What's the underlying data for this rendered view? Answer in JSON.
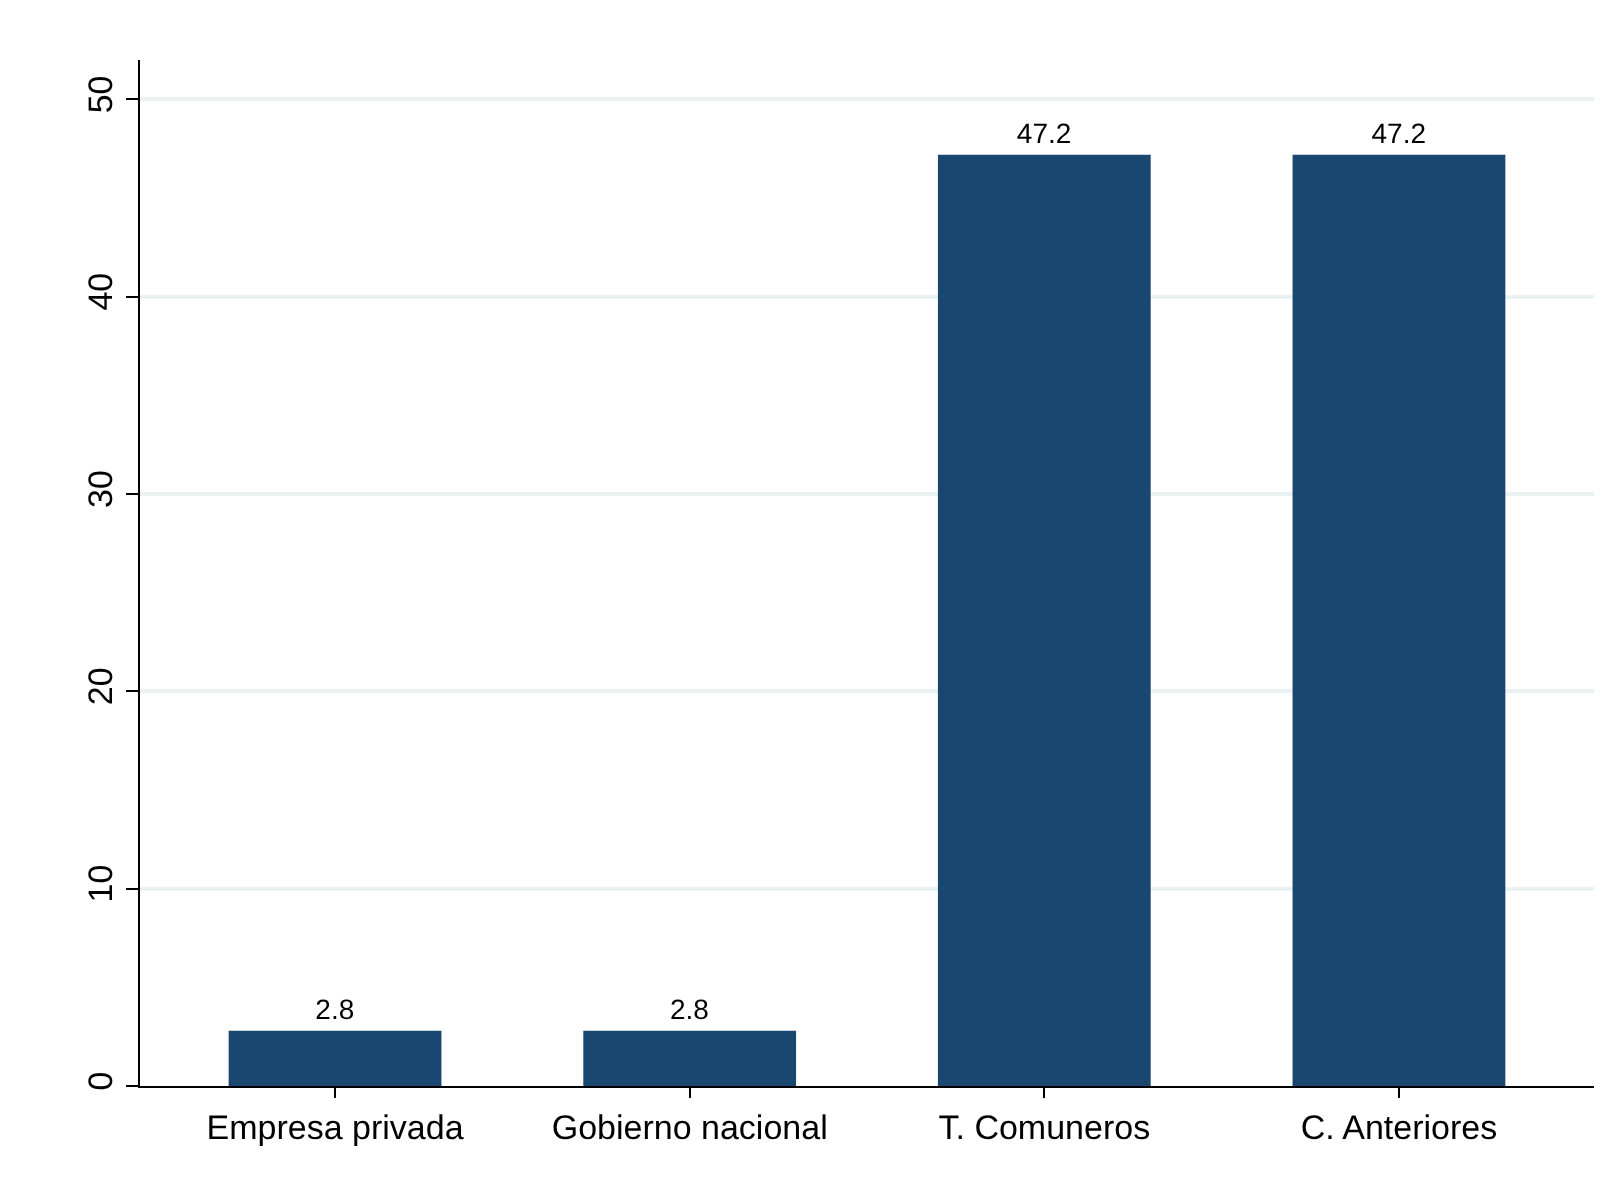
{
  "chart_data": {
    "type": "bar",
    "categories": [
      "Empresa privada",
      "Gobierno nacional",
      "T. Comuneros",
      "C. Anteriores"
    ],
    "values": [
      2.8,
      2.8,
      47.2,
      47.2
    ],
    "color": "#1a476f",
    "ylim": [
      0,
      52
    ],
    "yticks": [
      0,
      10,
      20,
      30,
      40,
      50
    ],
    "grid": "y",
    "data_labels": true
  }
}
